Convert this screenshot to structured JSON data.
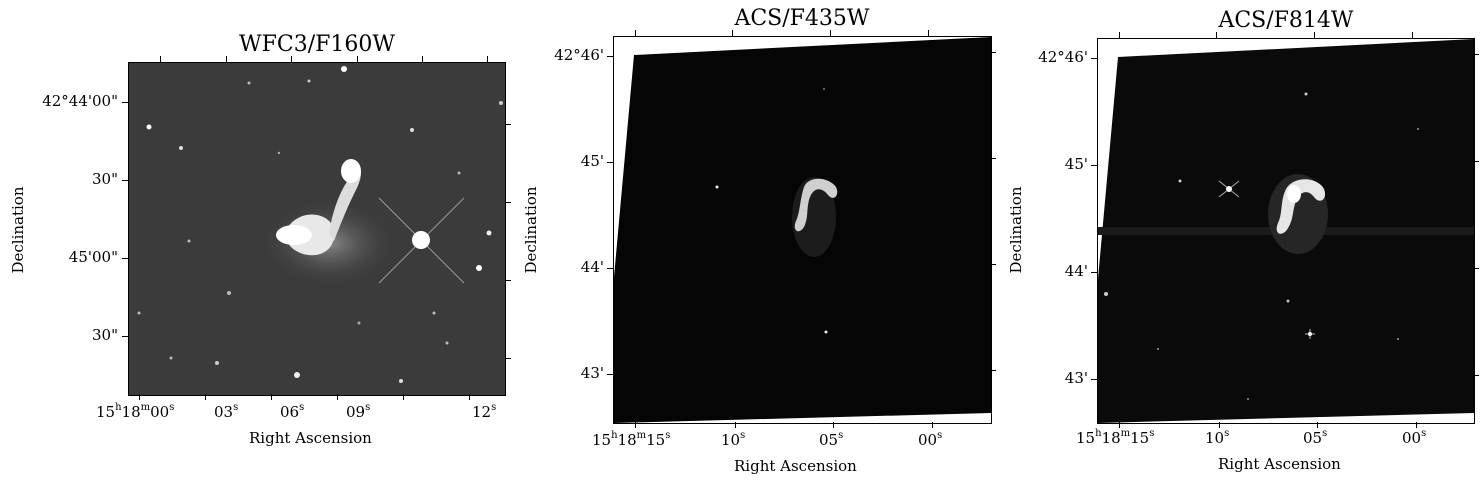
{
  "panels": [
    {
      "title": "WFC3/F160W",
      "xlabel": "Right Ascension",
      "ylabel": "Declination",
      "xticks": [
        {
          "label": "15",
          "sup1": "h",
          "mid": "18",
          "sup2": "m",
          "end": "00",
          "sup3": "s"
        },
        {
          "label": "03",
          "sup1": "s"
        },
        {
          "label": "06",
          "sup1": "s"
        },
        {
          "label": "09",
          "sup1": "s"
        },
        {
          "label": "12",
          "sup1": "s"
        }
      ],
      "yticks": [
        "42°44'00\"",
        "30\"",
        "45'00\"",
        "30\""
      ]
    },
    {
      "title": "ACS/F435W",
      "xlabel": "Right Ascension",
      "ylabel": "Declination",
      "xticks": [
        {
          "label": "15",
          "sup1": "h",
          "mid": "18",
          "sup2": "m",
          "end": "15",
          "sup3": "s"
        },
        {
          "label": "10",
          "sup1": "s"
        },
        {
          "label": "05",
          "sup1": "s"
        },
        {
          "label": "00",
          "sup1": "s"
        }
      ],
      "yticks": [
        "42°46'",
        "45'",
        "44'",
        "43'"
      ]
    },
    {
      "title": "ACS/F814W",
      "xlabel": "Right Ascension",
      "ylabel": "Declination",
      "xticks": [
        {
          "label": "15",
          "sup1": "h",
          "mid": "18",
          "sup2": "m",
          "end": "15",
          "sup3": "s"
        },
        {
          "label": "10",
          "sup1": "s"
        },
        {
          "label": "05",
          "sup1": "s"
        },
        {
          "label": "00",
          "sup1": "s"
        }
      ],
      "yticks": [
        "42°46'",
        "45'",
        "44'",
        "43'"
      ]
    }
  ],
  "colors": {
    "background": "#ffffff",
    "image_dark": "#050505",
    "image_gray": "#3c3c3c"
  }
}
